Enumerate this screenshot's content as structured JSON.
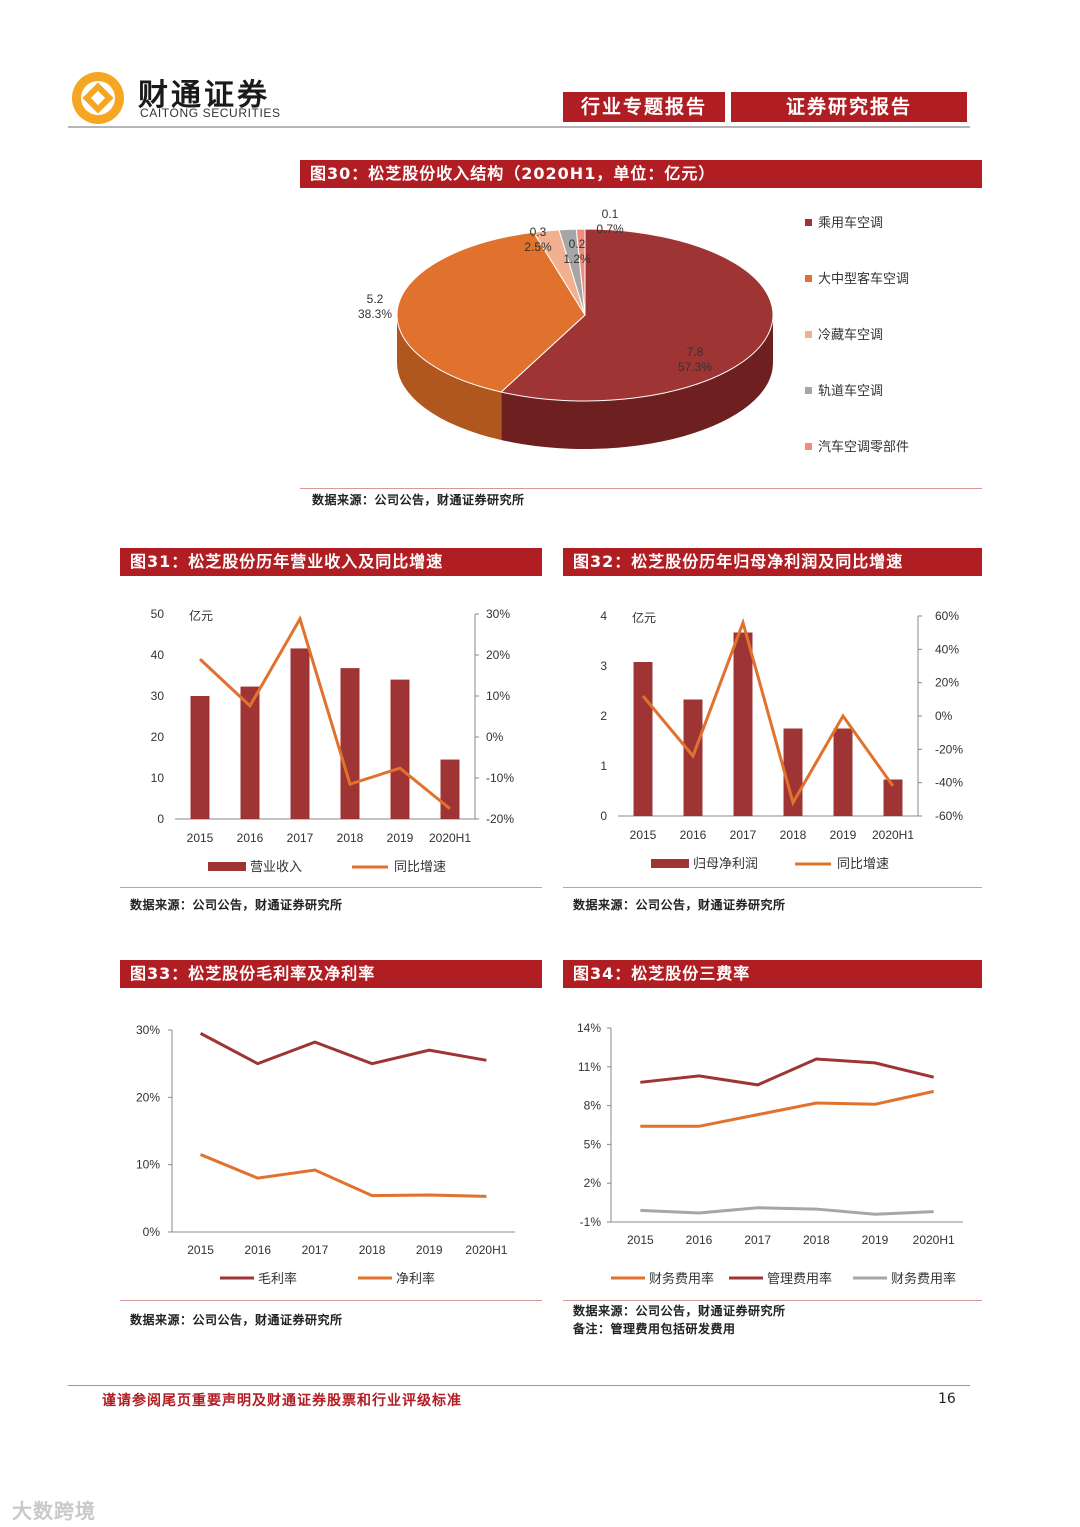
{
  "header": {
    "brand_cn": "财通证券",
    "brand_en": "CAITONG SECURITIES",
    "tag1": "行业专题报告",
    "tag2": "证券研究报告"
  },
  "colors": {
    "brand_red": "#b01e23",
    "dark_red": "#9e3434",
    "orange": "#e0722e",
    "light_orange": "#f2b08f",
    "grey": "#a6a6a6",
    "pink": "#f28b7d"
  },
  "fig30": {
    "title": "图30：松芝股份收入结构（2020H1，单位：亿元）",
    "source": "数据来源：公司公告，财通证券研究所",
    "chart_data": {
      "type": "pie",
      "labels": [
        "乘用车空调",
        "大中型客车空调",
        "冷藏车空调",
        "轨道车空调",
        "汽车空调零部件"
      ],
      "values": [
        7.8,
        5.2,
        0.3,
        0.2,
        0.1
      ],
      "value_labels": [
        "7.8",
        "5.2",
        "0.3",
        "0.2",
        "0.1"
      ],
      "percents": [
        "57.3%",
        "38.3%",
        "2.5%",
        "1.2%",
        "0.7%"
      ],
      "legend": "right"
    }
  },
  "fig31": {
    "title": "图31：松芝股份历年营业收入及同比增速",
    "source": "数据来源：公司公告，财通证券研究所",
    "chart_data": {
      "type": "bar",
      "categories": [
        "2015",
        "2016",
        "2017",
        "2018",
        "2019",
        "2020H1"
      ],
      "series": [
        {
          "name": "营业收入",
          "kind": "bar",
          "axis": "left",
          "values": [
            30.0,
            32.3,
            41.6,
            36.8,
            34.0,
            14.5
          ]
        },
        {
          "name": "同比增速",
          "kind": "line",
          "axis": "right",
          "values": [
            19.0,
            7.6,
            28.8,
            -11.5,
            -7.6,
            -17.5
          ]
        }
      ],
      "unit_label": "亿元",
      "ylim": [
        0,
        50
      ],
      "yticks": [
        "0",
        "10",
        "20",
        "30",
        "40",
        "50"
      ],
      "y2lim": [
        -20,
        30
      ],
      "y2ticks": [
        "-20%",
        "-10%",
        "0%",
        "10%",
        "20%",
        "30%"
      ]
    }
  },
  "fig32": {
    "title": "图32：松芝股份历年归母净利润及同比增速",
    "source": "数据来源：公司公告，财通证券研究所",
    "chart_data": {
      "type": "bar",
      "categories": [
        "2015",
        "2016",
        "2017",
        "2018",
        "2019",
        "2020H1"
      ],
      "series": [
        {
          "name": "归母净利润",
          "kind": "bar",
          "axis": "left",
          "values": [
            3.08,
            2.33,
            3.67,
            1.75,
            1.75,
            0.73
          ]
        },
        {
          "name": "同比增速",
          "kind": "line",
          "axis": "right",
          "values": [
            12,
            -24,
            56,
            -52,
            0,
            -42
          ]
        }
      ],
      "unit_label": "亿元",
      "ylim": [
        0,
        4
      ],
      "yticks": [
        "0",
        "1",
        "2",
        "3",
        "4"
      ],
      "y2lim": [
        -60,
        60
      ],
      "y2ticks": [
        "-60%",
        "-40%",
        "-20%",
        "0%",
        "20%",
        "40%",
        "60%"
      ]
    }
  },
  "fig33": {
    "title": "图33：松芝股份毛利率及净利率",
    "source": "数据来源：公司公告，财通证券研究所",
    "chart_data": {
      "type": "line",
      "categories": [
        "2015",
        "2016",
        "2017",
        "2018",
        "2019",
        "2020H1"
      ],
      "series": [
        {
          "name": "毛利率",
          "values": [
            29.5,
            25.0,
            28.2,
            25.0,
            27.0,
            25.5
          ]
        },
        {
          "name": "净利率",
          "values": [
            11.5,
            8.0,
            9.2,
            5.4,
            5.5,
            5.3
          ]
        }
      ],
      "ylim": [
        0,
        30
      ],
      "yticks": [
        "0%",
        "10%",
        "20%",
        "30%"
      ]
    }
  },
  "fig34": {
    "title": "图34：松芝股份三费率",
    "source": "数据来源：公司公告，财通证券研究所",
    "note": "备注：管理费用包括研发费用",
    "chart_data": {
      "type": "line",
      "categories": [
        "2015",
        "2016",
        "2017",
        "2018",
        "2019",
        "2020H1"
      ],
      "series": [
        {
          "name": "财务费用率",
          "values": [
            6.4,
            6.4,
            7.3,
            8.2,
            8.1,
            9.1
          ]
        },
        {
          "name": "管理费用率",
          "values": [
            9.8,
            10.3,
            9.6,
            11.6,
            11.3,
            10.2
          ]
        },
        {
          "name": "财务费用率",
          "values": [
            -0.1,
            -0.3,
            0.1,
            0.0,
            -0.4,
            -0.2
          ]
        }
      ],
      "ylim": [
        -1,
        14
      ],
      "yticks": [
        "-1%",
        "2%",
        "5%",
        "8%",
        "11%",
        "14%"
      ]
    }
  },
  "footer": {
    "disclaimer": "谨请参阅尾页重要声明及财通证券股票和行业评级标准",
    "page": "16"
  },
  "watermark": "大数跨境"
}
